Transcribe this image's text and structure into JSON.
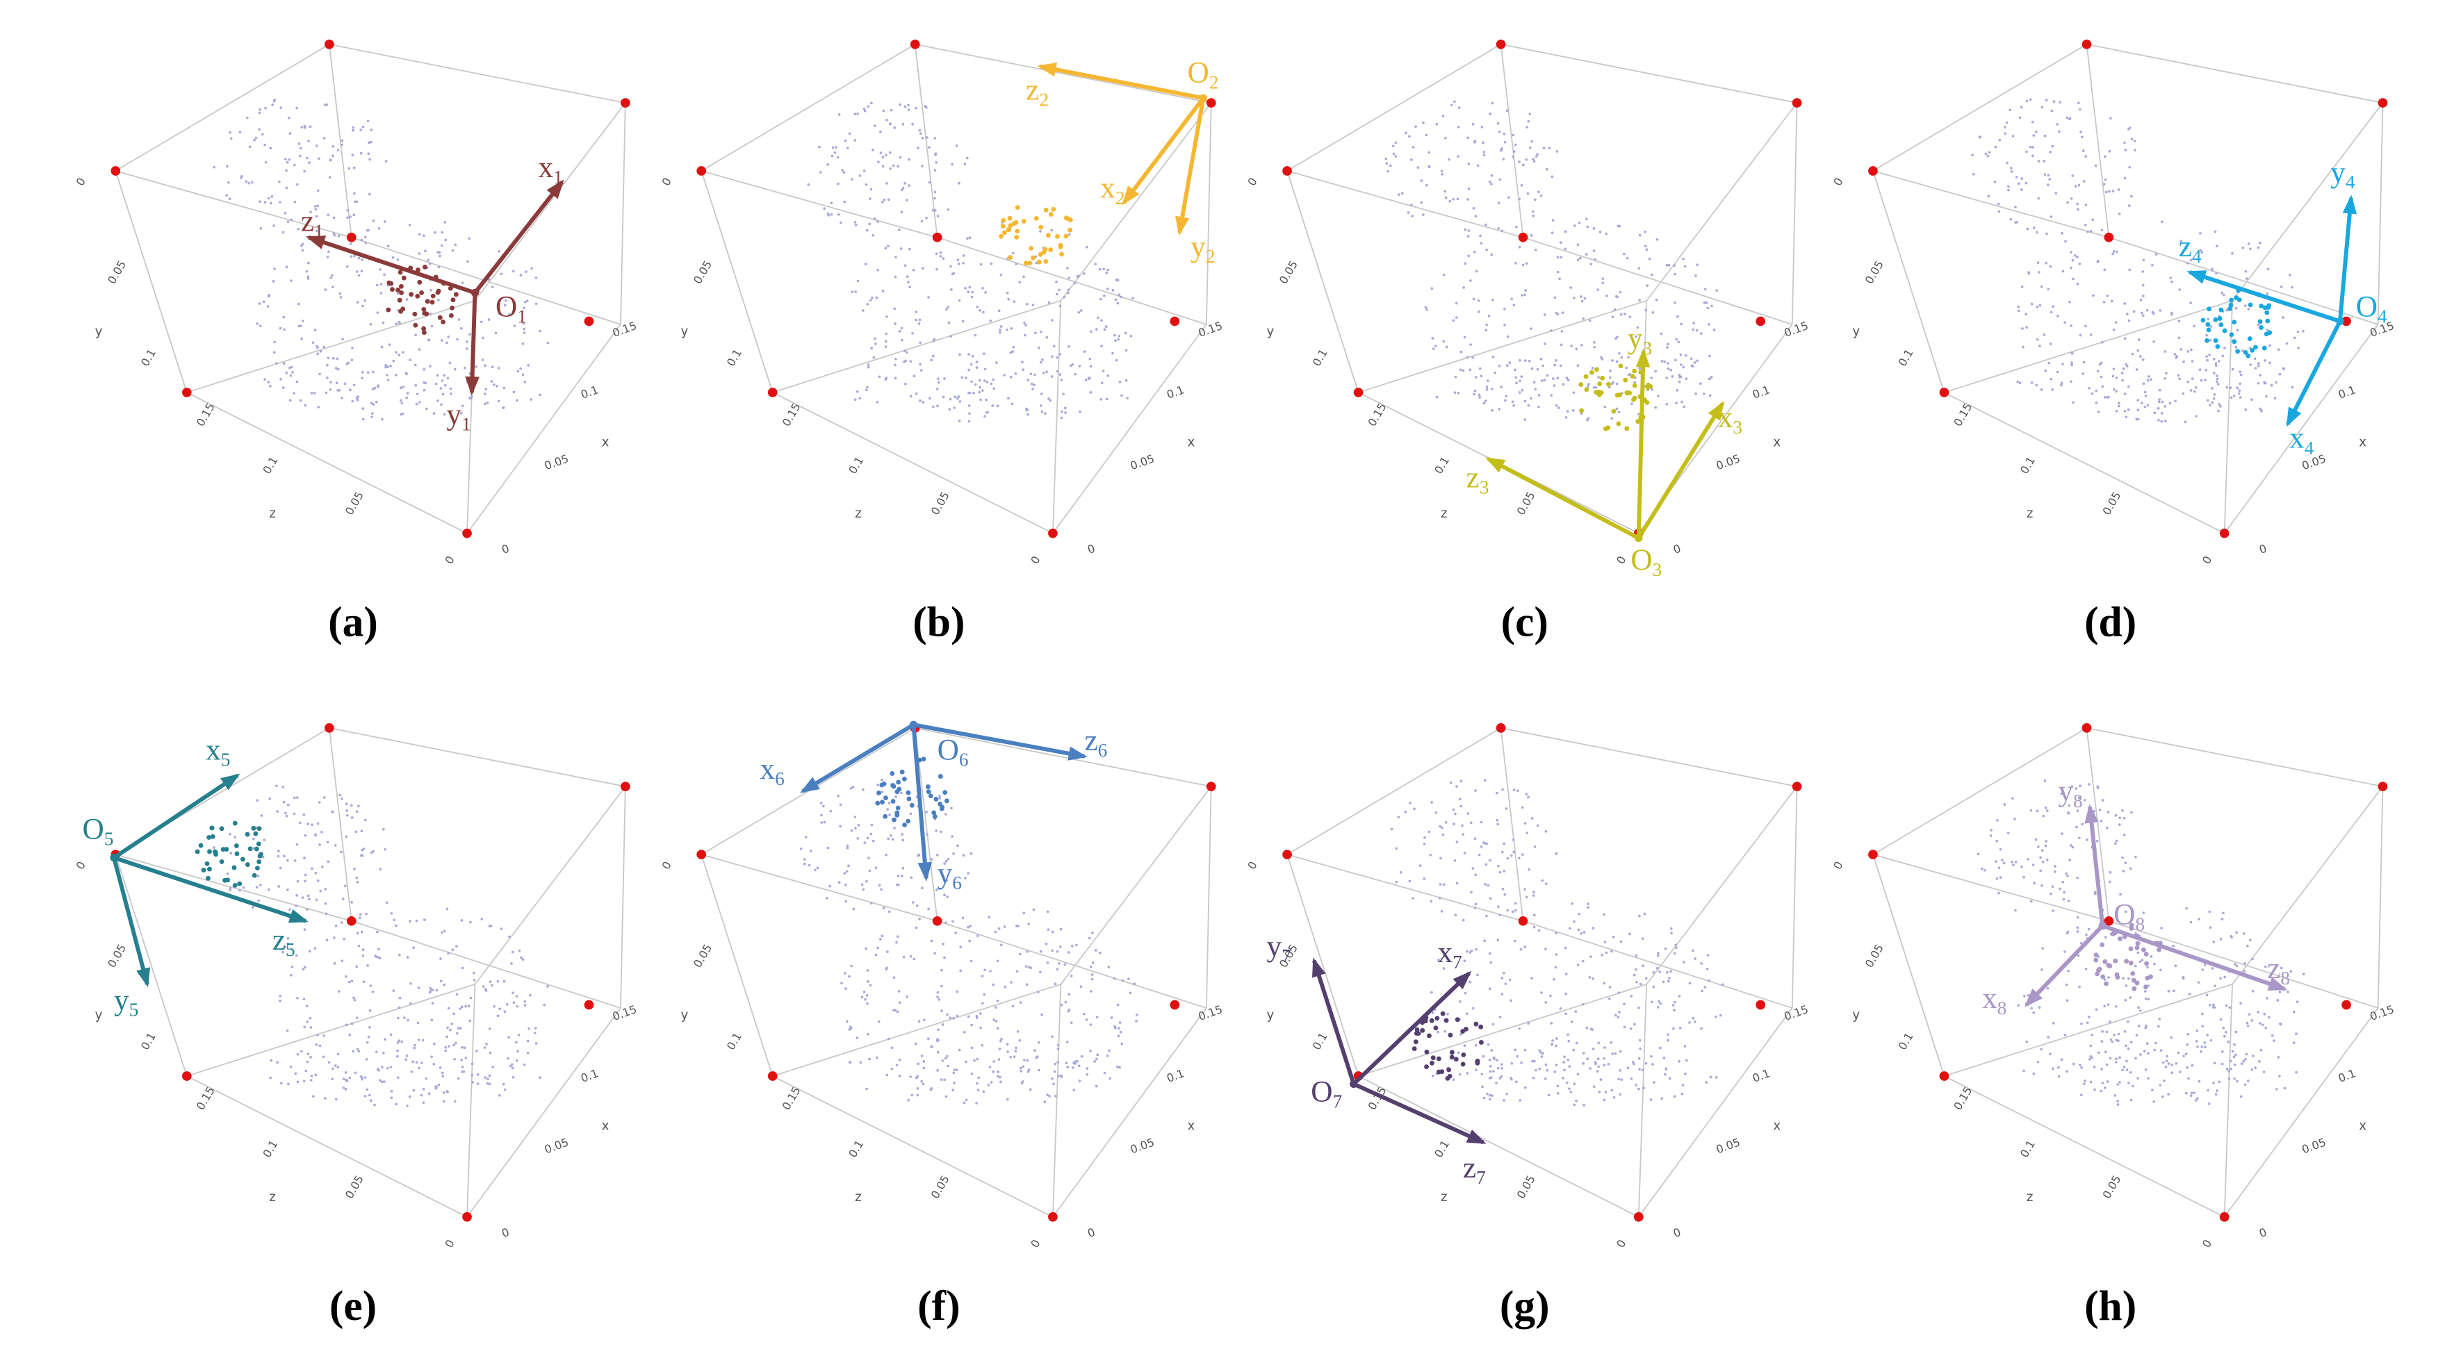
{
  "axes": {
    "y": {
      "label": "y",
      "ticks": [
        0,
        0.05,
        0.1
      ]
    },
    "z": {
      "label": "z",
      "ticks": [
        0.15,
        0.1,
        0.05,
        0
      ]
    },
    "x": {
      "label": "x",
      "ticks": [
        0.15,
        0.1,
        0.05,
        0
      ]
    }
  },
  "panels": [
    {
      "caption": "(a)",
      "color": "#8b3a3a",
      "frame": {
        "origin": {
          "base": "O",
          "sub": "1"
        },
        "x": {
          "base": "x",
          "sub": "1"
        },
        "y": {
          "base": "y",
          "sub": "1"
        },
        "z": {
          "base": "z",
          "sub": "1"
        }
      }
    },
    {
      "caption": "(b)",
      "color": "#f5b731",
      "frame": {
        "origin": {
          "base": "O",
          "sub": "2"
        },
        "x": {
          "base": "x",
          "sub": "2"
        },
        "y": {
          "base": "y",
          "sub": "2"
        },
        "z": {
          "base": "z",
          "sub": "2"
        }
      }
    },
    {
      "caption": "(c)",
      "color": "#c4bd1a",
      "frame": {
        "origin": {
          "base": "O",
          "sub": "3"
        },
        "x": {
          "base": "x",
          "sub": "3"
        },
        "y": {
          "base": "y",
          "sub": "3"
        },
        "z": {
          "base": "z",
          "sub": "3"
        }
      }
    },
    {
      "caption": "(d)",
      "color": "#1aa7e0",
      "frame": {
        "origin": {
          "base": "O",
          "sub": "4"
        },
        "x": {
          "base": "x",
          "sub": "4"
        },
        "y": {
          "base": "y",
          "sub": "4"
        },
        "z": {
          "base": "z",
          "sub": "4"
        }
      }
    },
    {
      "caption": "(e)",
      "color": "#257f8e",
      "frame": {
        "origin": {
          "base": "O",
          "sub": "5"
        },
        "x": {
          "base": "x",
          "sub": "5"
        },
        "y": {
          "base": "y",
          "sub": "5"
        },
        "z": {
          "base": "z",
          "sub": "5"
        }
      }
    },
    {
      "caption": "(f)",
      "color": "#4a7fc0",
      "frame": {
        "origin": {
          "base": "O",
          "sub": "6"
        },
        "x": {
          "base": "x",
          "sub": "6"
        },
        "y": {
          "base": "y",
          "sub": "6"
        },
        "z": {
          "base": "z",
          "sub": "6"
        }
      }
    },
    {
      "caption": "(g)",
      "color": "#54406f",
      "frame": {
        "origin": {
          "base": "O",
          "sub": "7"
        },
        "x": {
          "base": "x",
          "sub": "7"
        },
        "y": {
          "base": "y",
          "sub": "7"
        },
        "z": {
          "base": "z",
          "sub": "7"
        }
      }
    },
    {
      "caption": "(h)",
      "color": "#a997c8",
      "frame": {
        "origin": {
          "base": "O",
          "sub": "8"
        },
        "x": {
          "base": "x",
          "sub": "8"
        },
        "y": {
          "base": "y",
          "sub": "8"
        },
        "z": {
          "base": "z",
          "sub": "8"
        }
      }
    }
  ]
}
